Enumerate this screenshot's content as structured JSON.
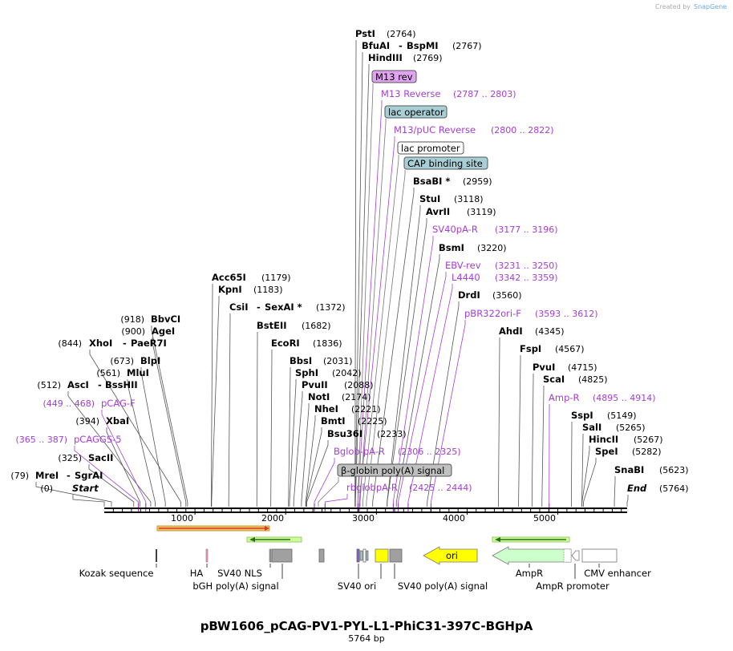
{
  "credit": {
    "prefix": "Created by",
    "brand": "SnapGene"
  },
  "title": "pBW1606_pCAG-PV1-PYL-L1-PhiC31-397C-BGHpA",
  "subtitle": "5764 bp",
  "length": 5764,
  "axis_ticks": [
    "1000",
    "2000",
    "3000",
    "4000",
    "5000"
  ],
  "enzymes": [
    {
      "name": "Start",
      "pos": "(0)",
      "site": 0
    },
    {
      "name": "MreI",
      "name2": "SgrAI",
      "pos": "(79)",
      "site": 79
    },
    {
      "name": "SacII",
      "pos": "(325)",
      "site": 325
    },
    {
      "name": "XbaI",
      "pos": "(394)",
      "site": 394
    },
    {
      "name": "AscI",
      "name2": "BssHII",
      "pos": "(512)",
      "site": 512
    },
    {
      "name": "MluI",
      "pos": "(561)",
      "site": 561
    },
    {
      "name": "BlpI",
      "pos": "(673)",
      "site": 673
    },
    {
      "name": "XhoI",
      "name2": "PaeR7I",
      "pos": "(844)",
      "site": 844
    },
    {
      "name": "AgeI",
      "pos": "(900)",
      "site": 900
    },
    {
      "name": "BbvCI",
      "pos": "(918)",
      "site": 918
    },
    {
      "name": "Acc65I",
      "pos": "(1179)",
      "site": 1179
    },
    {
      "name": "KpnI",
      "pos": "(1183)",
      "site": 1183
    },
    {
      "name": "CsiI",
      "name2": "SexAI *",
      "pos": "(1372)",
      "site": 1372
    },
    {
      "name": "BstEII",
      "pos": "(1682)",
      "site": 1682
    },
    {
      "name": "EcoRI",
      "pos": "(1836)",
      "site": 1836
    },
    {
      "name": "BbsI",
      "pos": "(2031)",
      "site": 2031
    },
    {
      "name": "SphI",
      "pos": "(2042)",
      "site": 2042
    },
    {
      "name": "PvuII",
      "pos": "(2088)",
      "site": 2088
    },
    {
      "name": "NotI",
      "pos": "(2174)",
      "site": 2174
    },
    {
      "name": "NheI",
      "pos": "(2221)",
      "site": 2221
    },
    {
      "name": "BmtI",
      "pos": "(2225)",
      "site": 2225
    },
    {
      "name": "Bsu36I",
      "pos": "(2233)",
      "site": 2233
    },
    {
      "name": "PstI",
      "pos": "(2764)",
      "site": 2764
    },
    {
      "name": "BfuAI",
      "name2": "BspMI",
      "pos": "(2767)",
      "site": 2767
    },
    {
      "name": "HindIII",
      "pos": "(2769)",
      "site": 2769
    },
    {
      "name": "BsaBI *",
      "pos": "(2959)",
      "site": 2959
    },
    {
      "name": "StuI",
      "pos": "(3118)",
      "site": 3118
    },
    {
      "name": "AvrII",
      "pos": "(3119)",
      "site": 3119
    },
    {
      "name": "BsmI",
      "pos": "(3220)",
      "site": 3220
    },
    {
      "name": "DrdI",
      "pos": "(3560)",
      "site": 3560
    },
    {
      "name": "AhdI",
      "pos": "(4345)",
      "site": 4345
    },
    {
      "name": "FspI",
      "pos": "(4567)",
      "site": 4567
    },
    {
      "name": "PvuI",
      "pos": "(4715)",
      "site": 4715
    },
    {
      "name": "ScaI",
      "pos": "(4825)",
      "site": 4825
    },
    {
      "name": "SspI",
      "pos": "(5149)",
      "site": 5149
    },
    {
      "name": "SalI",
      "pos": "(5265)",
      "site": 5265
    },
    {
      "name": "HincII",
      "pos": "(5267)",
      "site": 5267
    },
    {
      "name": "SpeI",
      "pos": "(5282)",
      "site": 5282
    },
    {
      "name": "SnaBI",
      "pos": "(5623)",
      "site": 5623
    },
    {
      "name": "End",
      "pos": "(5764)",
      "site": 5764
    }
  ],
  "primers": [
    {
      "name": "pCAG-F",
      "range": "(449 .. 468)",
      "site": 458
    },
    {
      "name": "pCAGGS-5",
      "range": "(365 .. 387)",
      "site": 376
    },
    {
      "name": "Bglob-pA-R",
      "range": "(2306 .. 2325)",
      "site": 2316
    },
    {
      "name": "rbglobpA-R",
      "range": "(2425 .. 2444)",
      "site": 2434
    },
    {
      "name": "M13 Reverse",
      "range": "(2787 .. 2803)",
      "site": 2795
    },
    {
      "name": "M13/pUC Reverse",
      "range": "(2800 .. 2822)",
      "site": 2811
    },
    {
      "name": "SV40pA-R",
      "range": "(3177 .. 3196)",
      "site": 3186
    },
    {
      "name": "EBV-rev",
      "range": "(3231 .. 3250)",
      "site": 3240
    },
    {
      "name": "L4440",
      "range": "(3342 .. 3359)",
      "site": 3350
    },
    {
      "name": "pBR322ori-F",
      "range": "(3593 .. 3612)",
      "site": 3602
    },
    {
      "name": "Amp-R",
      "range": "(4895 .. 4914)",
      "site": 4904
    }
  ],
  "boxed_features": [
    {
      "name": "M13 rev",
      "color": "#e0a3f0",
      "site": 2795
    },
    {
      "name": "lac operator",
      "color": "#a9cfd6",
      "site": 2820
    },
    {
      "name": "lac promoter",
      "color": "#ffffff",
      "site": 2850
    },
    {
      "name": "CAP binding site",
      "color": "#a9cfd6",
      "site": 2890
    },
    {
      "name": "β-globin poly(A) signal",
      "color": "#c0c0c0",
      "site": 2360
    }
  ],
  "features": [
    {
      "name": "Kozak sequence"
    },
    {
      "name": "HA"
    },
    {
      "name": "bGH poly(A) signal"
    },
    {
      "name": "SV40 NLS"
    },
    {
      "name": "SV40 ori"
    },
    {
      "name": "SV40 poly(A) signal"
    },
    {
      "name": "ori"
    },
    {
      "name": "AmpR"
    },
    {
      "name": "AmpR promoter"
    },
    {
      "name": "CMV enhancer"
    }
  ],
  "colors": {
    "primer": "#a63cd6",
    "ori": "#ffff00",
    "ampr": "#ccffcc",
    "orf": "#f5c061"
  }
}
